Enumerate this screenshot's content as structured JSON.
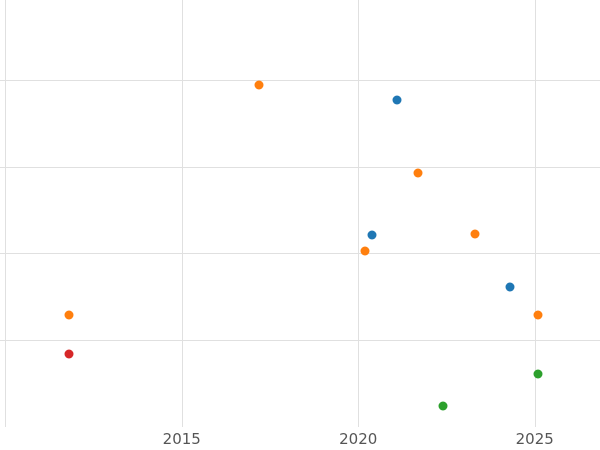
{
  "colors": {
    "background": "#ffffff",
    "grid": "#e0e0e0",
    "tick_label": "#555555"
  },
  "chart_data": {
    "type": "scatter",
    "title": "",
    "xlabel": "",
    "ylabel": "",
    "grid": true,
    "legend": "none",
    "x_tick_labels": [
      "2015",
      "2020",
      "2025"
    ],
    "x_ticks": [
      2015,
      2020,
      2025
    ],
    "x_gridlines": [
      2010,
      2015,
      2020,
      2025
    ],
    "y_gridlines": [
      1,
      2,
      3,
      4
    ],
    "y_tick_labels_visible": false,
    "y_axis_note": "no y tick labels visible; y values estimated in gridline units",
    "xlim": [
      2009.85,
      2026.85
    ],
    "ylim": [
      0,
      4.92
    ],
    "series": [
      {
        "name": "orange",
        "color": "#ff7f0e",
        "points": [
          [
            2017.2,
            3.94
          ],
          [
            2020.2,
            2.03
          ],
          [
            2021.7,
            2.93
          ],
          [
            2023.3,
            2.22
          ],
          [
            2011.8,
            1.29
          ],
          [
            2025.1,
            1.29
          ]
        ]
      },
      {
        "name": "blue",
        "color": "#1f77b4",
        "points": [
          [
            2021.1,
            3.77
          ],
          [
            2020.4,
            2.21
          ],
          [
            2024.3,
            1.61
          ]
        ]
      },
      {
        "name": "red",
        "color": "#d62728",
        "points": [
          [
            2011.8,
            0.84
          ]
        ]
      },
      {
        "name": "green",
        "color": "#2ca02c",
        "points": [
          [
            2022.4,
            0.24
          ],
          [
            2025.1,
            0.61
          ]
        ]
      }
    ]
  }
}
